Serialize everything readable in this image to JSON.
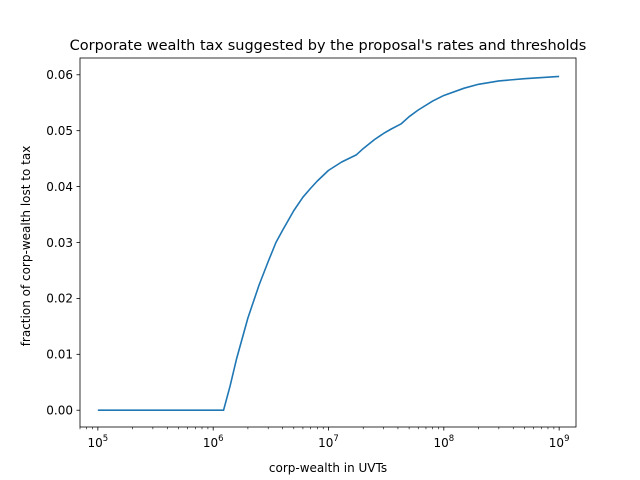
{
  "chart_data": {
    "type": "line",
    "title": "Corporate wealth tax suggested by the proposal's rates and thresholds",
    "xlabel": "corp-wealth in UVTs",
    "ylabel": "fraction of corp-wealth lost to tax",
    "xscale": "log",
    "xlim": [
      70000,
      1400000000
    ],
    "ylim": [
      -0.003,
      0.063
    ],
    "grid": false,
    "legend": "none",
    "line_color": "#1f77b4",
    "x_ticks": [
      {
        "base": "10",
        "exp": "5",
        "value": 100000
      },
      {
        "base": "10",
        "exp": "6",
        "value": 1000000
      },
      {
        "base": "10",
        "exp": "7",
        "value": 10000000
      },
      {
        "base": "10",
        "exp": "8",
        "value": 100000000
      },
      {
        "base": "10",
        "exp": "9",
        "value": 1000000000
      }
    ],
    "y_ticks": [
      {
        "label": "0.00",
        "value": 0.0
      },
      {
        "label": "0.01",
        "value": 0.01
      },
      {
        "label": "0.02",
        "value": 0.02
      },
      {
        "label": "0.03",
        "value": 0.03
      },
      {
        "label": "0.04",
        "value": 0.04
      },
      {
        "label": "0.05",
        "value": 0.05
      },
      {
        "label": "0.06",
        "value": 0.06
      }
    ],
    "series": [
      {
        "x": [
          100000,
          300000,
          1000000,
          1230000,
          1400000,
          1600000,
          2000000,
          2500000,
          3000000,
          3500000,
          4000000,
          5000000,
          6000000,
          7000000,
          8000000,
          10000000,
          13000000,
          17500000,
          20000000,
          25000000,
          30000000,
          35000000,
          42500000,
          50000000,
          60000000,
          80000000,
          100000000,
          150000000,
          200000000,
          300000000,
          500000000,
          1000000000
        ],
        "y": [
          0.0,
          0.0,
          0.0,
          0.0,
          0.0043,
          0.0093,
          0.0165,
          0.0224,
          0.0266,
          0.03,
          0.0322,
          0.0357,
          0.0381,
          0.0397,
          0.041,
          0.0429,
          0.0444,
          0.0457,
          0.0468,
          0.0484,
          0.0495,
          0.0503,
          0.0512,
          0.0525,
          0.0537,
          0.0553,
          0.0563,
          0.0576,
          0.0583,
          0.0589,
          0.0593,
          0.0597
        ]
      }
    ]
  }
}
